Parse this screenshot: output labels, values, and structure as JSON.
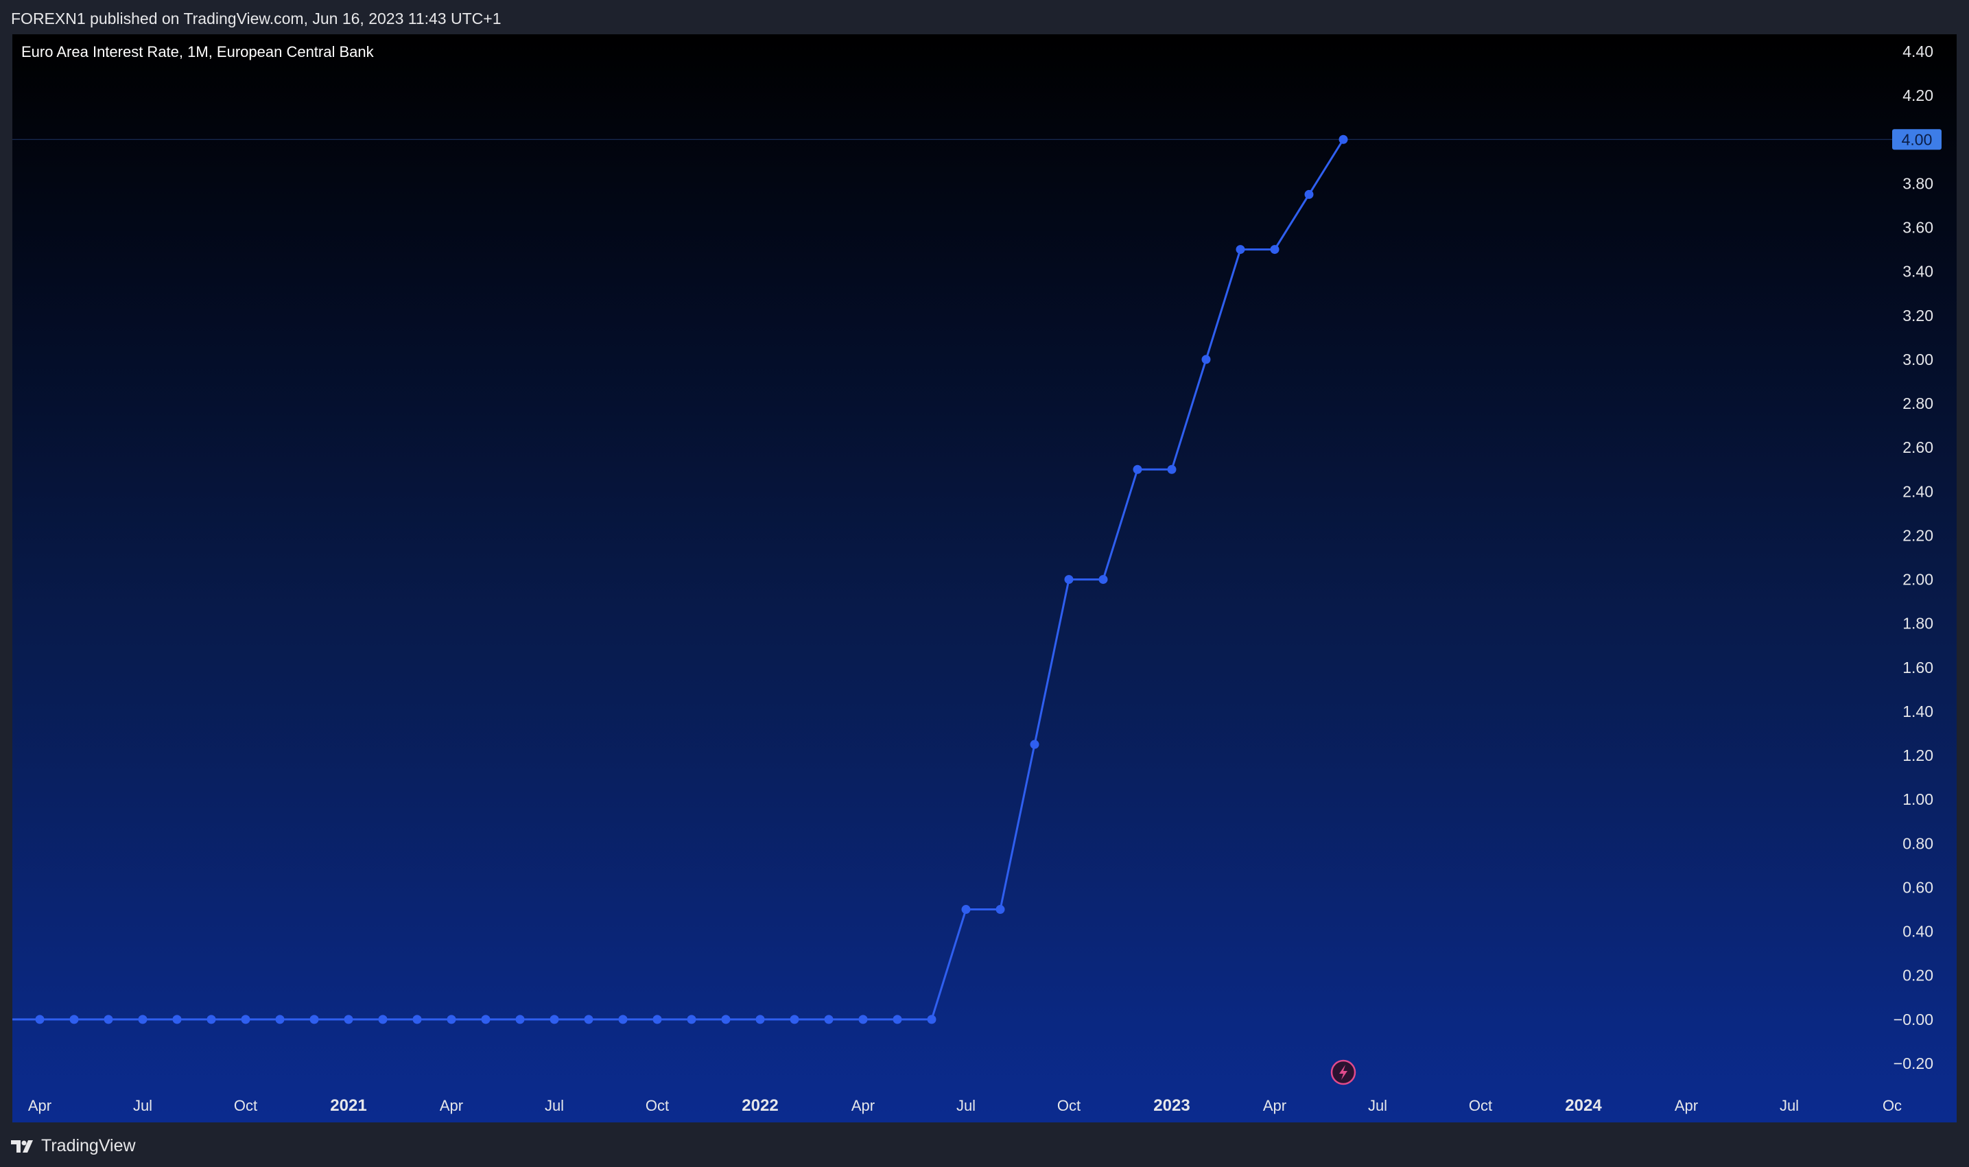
{
  "header": {
    "published_text": "FOREXN1 published on TradingView.com, Jun 16, 2023 11:43 UTC+1"
  },
  "footer": {
    "brand": "TradingView",
    "logo_icon": "tradingview-logo-icon"
  },
  "colors": {
    "line": "#2f5ff0",
    "last_price_badge": "#3d7de8",
    "lightning_badge": "#e04a8c"
  },
  "chart_data": {
    "type": "line",
    "title": "Euro Area Interest Rate, 1M, European Central Bank",
    "symbol": "Euro Area Interest Rate",
    "interval": "1M",
    "source": "European Central Bank",
    "x": [
      "2020-04",
      "2020-05",
      "2020-06",
      "2020-07",
      "2020-08",
      "2020-09",
      "2020-10",
      "2020-11",
      "2020-12",
      "2021-01",
      "2021-02",
      "2021-03",
      "2021-04",
      "2021-05",
      "2021-06",
      "2021-07",
      "2021-08",
      "2021-09",
      "2021-10",
      "2021-11",
      "2021-12",
      "2022-01",
      "2022-02",
      "2022-03",
      "2022-04",
      "2022-05",
      "2022-06",
      "2022-07",
      "2022-08",
      "2022-09",
      "2022-10",
      "2022-11",
      "2022-12",
      "2023-01",
      "2023-02",
      "2023-03",
      "2023-04",
      "2023-05",
      "2023-06"
    ],
    "series": [
      {
        "values": [
          0,
          0,
          0,
          0,
          0,
          0,
          0,
          0,
          0,
          0,
          0,
          0,
          0,
          0,
          0,
          0,
          0,
          0,
          0,
          0,
          0,
          0,
          0,
          0,
          0,
          0,
          0,
          0.5,
          0.5,
          1.25,
          2.0,
          2.0,
          2.5,
          2.5,
          3.0,
          3.5,
          3.5,
          3.75,
          4.0
        ]
      }
    ],
    "last_value_label": "4.00",
    "y_ticks": [
      "4.40",
      "4.20",
      "4.00",
      "3.80",
      "3.60",
      "3.40",
      "3.20",
      "3.00",
      "2.80",
      "2.60",
      "2.40",
      "2.20",
      "2.00",
      "1.80",
      "1.60",
      "1.40",
      "1.20",
      "1.00",
      "0.80",
      "0.60",
      "0.40",
      "0.20",
      "−0.00",
      "−0.20"
    ],
    "x_ticks": [
      {
        "label": "Apr",
        "date": "2020-04",
        "major": false
      },
      {
        "label": "Jul",
        "date": "2020-07",
        "major": false
      },
      {
        "label": "Oct",
        "date": "2020-10",
        "major": false
      },
      {
        "label": "2021",
        "date": "2021-01",
        "major": true
      },
      {
        "label": "Apr",
        "date": "2021-04",
        "major": false
      },
      {
        "label": "Jul",
        "date": "2021-07",
        "major": false
      },
      {
        "label": "Oct",
        "date": "2021-10",
        "major": false
      },
      {
        "label": "2022",
        "date": "2022-01",
        "major": true
      },
      {
        "label": "Apr",
        "date": "2022-04",
        "major": false
      },
      {
        "label": "Jul",
        "date": "2022-07",
        "major": false
      },
      {
        "label": "Oct",
        "date": "2022-10",
        "major": false
      },
      {
        "label": "2023",
        "date": "2023-01",
        "major": true
      },
      {
        "label": "Apr",
        "date": "2023-04",
        "major": false
      },
      {
        "label": "Jul",
        "date": "2023-07",
        "major": false
      },
      {
        "label": "Oct",
        "date": "2023-10",
        "major": false
      },
      {
        "label": "2024",
        "date": "2024-01",
        "major": true
      },
      {
        "label": "Apr",
        "date": "2024-04",
        "major": false
      },
      {
        "label": "Jul",
        "date": "2024-07",
        "major": false
      },
      {
        "label": "Oc",
        "date": "2024-10",
        "major": false
      }
    ],
    "ylim": [
      -0.2,
      4.4
    ],
    "grid": false,
    "legend": "top-left"
  }
}
